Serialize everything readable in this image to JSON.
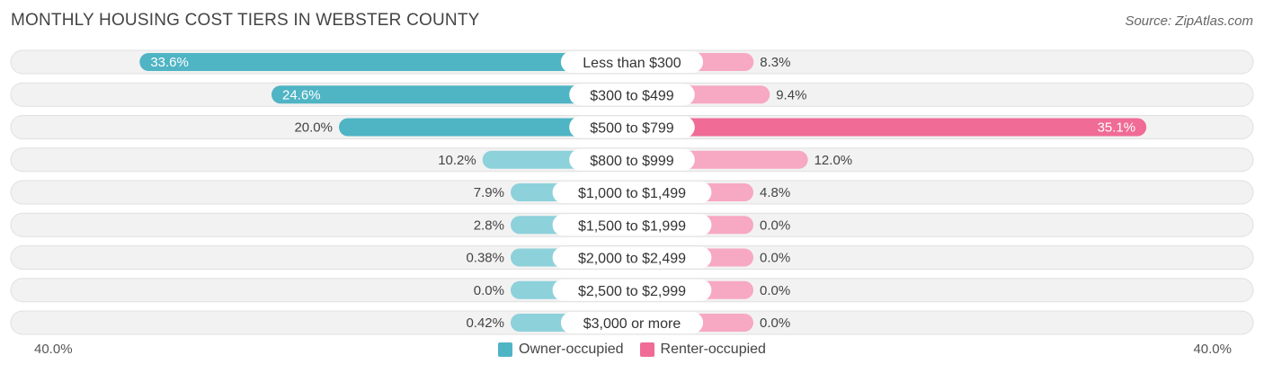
{
  "title": "MONTHLY HOUSING COST TIERS IN WEBSTER COUNTY",
  "source": "Source: ZipAtlas.com",
  "chart_data": {
    "type": "bar",
    "orientation": "horizontal-diverging",
    "categories": [
      "Less than $300",
      "$300 to $499",
      "$500 to $799",
      "$800 to $999",
      "$1,000 to $1,499",
      "$1,500 to $1,999",
      "$2,000 to $2,499",
      "$2,500 to $2,999",
      "$3,000 or more"
    ],
    "series": [
      {
        "name": "Owner-occupied",
        "values": [
          33.6,
          24.6,
          20.0,
          10.2,
          7.9,
          2.8,
          0.38,
          0.0,
          0.42
        ],
        "labels": [
          "33.6%",
          "24.6%",
          "20.0%",
          "10.2%",
          "7.9%",
          "2.8%",
          "0.38%",
          "0.0%",
          "0.42%"
        ]
      },
      {
        "name": "Renter-occupied",
        "values": [
          8.3,
          9.4,
          35.1,
          12.0,
          4.8,
          0.0,
          0.0,
          0.0,
          0.0
        ],
        "labels": [
          "8.3%",
          "9.4%",
          "35.1%",
          "12.0%",
          "4.8%",
          "0.0%",
          "0.0%",
          "0.0%",
          "0.0%"
        ]
      }
    ],
    "axis": {
      "left_label": "40.0%",
      "right_label": "40.0%",
      "max": 40.0
    },
    "legend_position": "bottom",
    "colors": {
      "owner": "#4fb4c4",
      "owner_light": "#8dd1db",
      "renter": "#f06b96",
      "renter_light": "#f7a8c2",
      "track": "#f2f2f2",
      "track_border": "#e0e0e0"
    }
  }
}
